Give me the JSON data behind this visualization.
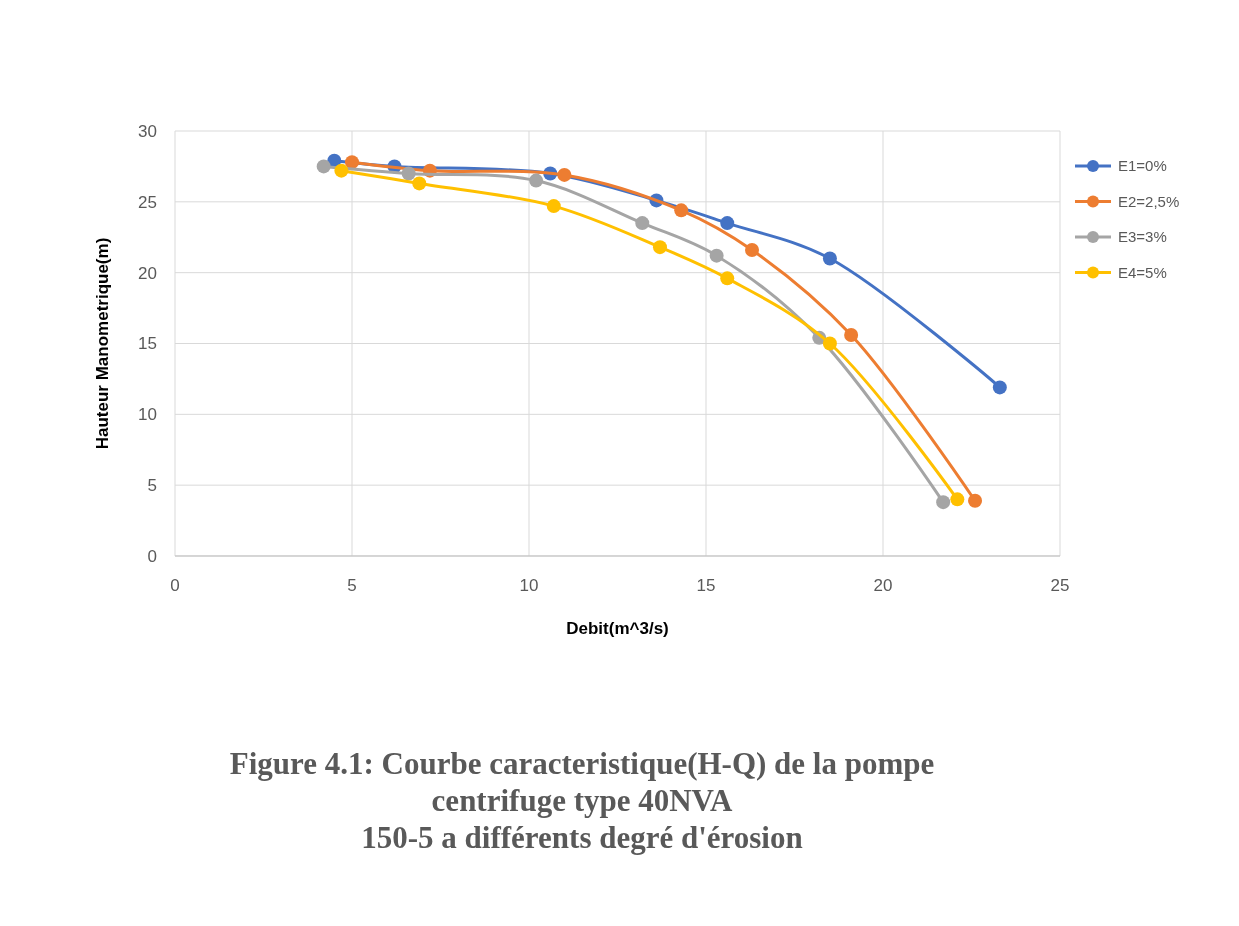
{
  "chart_data": {
    "type": "line",
    "title": "Figure 4.1: Courbe caracteristique(H-Q) de la pompe\ncentrifuge type 40NVA\n150-5 a différents degré d'érosion",
    "xlabel": "Debit(m^3/s)",
    "ylabel": "Hauteur Manometrique(m)",
    "xlim": [
      0,
      25
    ],
    "xticks": [
      0,
      5,
      10,
      15,
      20,
      25
    ],
    "ylim": [
      0,
      30
    ],
    "yticks": [
      0,
      5,
      10,
      15,
      20,
      25,
      30
    ],
    "grid": true,
    "legend": "right",
    "marker": "circle",
    "series": [
      {
        "name": "E1=0%",
        "color": "#4472c4",
        "x": [
          4.5,
          6.2,
          10.6,
          13.6,
          15.6,
          18.5,
          23.3
        ],
        "values": [
          27.9,
          27.5,
          27.0,
          25.1,
          23.5,
          21.0,
          11.9
        ]
      },
      {
        "name": "E2=2,5%",
        "color": "#ed7d31",
        "x": [
          5.0,
          7.2,
          11.0,
          14.3,
          16.3,
          19.1,
          22.6
        ],
        "values": [
          27.8,
          27.2,
          26.9,
          24.4,
          21.6,
          15.6,
          3.9
        ]
      },
      {
        "name": "E3=3%",
        "color": "#a5a5a5",
        "x": [
          4.2,
          6.6,
          10.2,
          13.2,
          15.3,
          18.2,
          21.7
        ],
        "values": [
          27.5,
          27.0,
          26.5,
          23.5,
          21.2,
          15.4,
          3.8
        ]
      },
      {
        "name": "E4=5%",
        "color": "#ffc000",
        "x": [
          4.7,
          6.9,
          10.7,
          13.7,
          15.6,
          18.5,
          22.1
        ],
        "values": [
          27.2,
          26.3,
          24.7,
          21.8,
          19.6,
          15.0,
          4.0
        ]
      }
    ]
  }
}
